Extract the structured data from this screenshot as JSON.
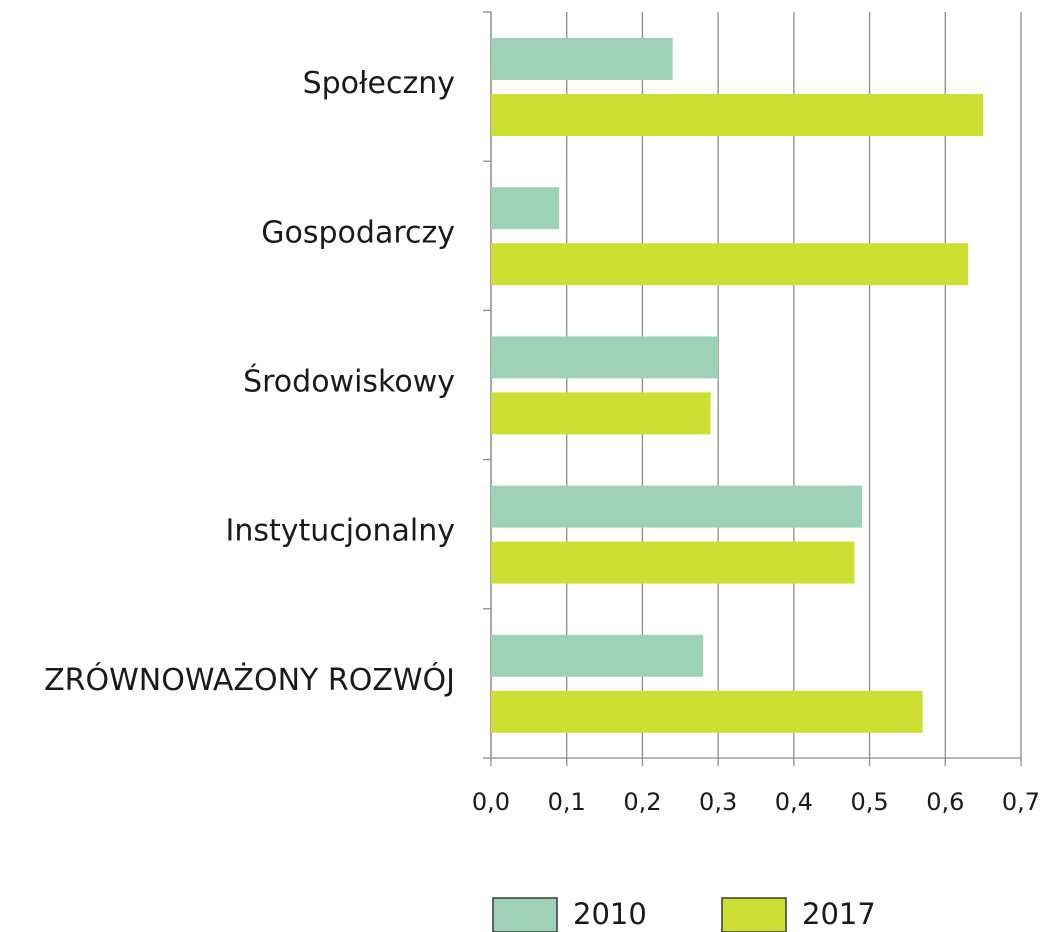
{
  "chart_data": {
    "type": "barh",
    "categories": [
      "Społeczny",
      "Gospodarczy",
      "Środowiskowy",
      "Instytucjonalny",
      "ZRÓWNOWAŻONY ROZWÓJ"
    ],
    "series": [
      {
        "name": "2010",
        "color": "#9ed2b6",
        "values": [
          0.24,
          0.09,
          0.3,
          0.49,
          0.28
        ]
      },
      {
        "name": "2017",
        "color": "#cedf33",
        "values": [
          0.65,
          0.63,
          0.29,
          0.48,
          0.57
        ]
      }
    ],
    "xlim": [
      0,
      0.7
    ],
    "xticks": [
      {
        "value": 0,
        "label": "0,0"
      },
      {
        "value": 0.1,
        "label": "0,1"
      },
      {
        "value": 0.2,
        "label": "0,2"
      },
      {
        "value": 0.3,
        "label": "0,3"
      },
      {
        "value": 0.4,
        "label": "0,4"
      },
      {
        "value": 0.5,
        "label": "0,5"
      },
      {
        "value": 0.6,
        "label": "0,6"
      },
      {
        "value": 0.7,
        "label": "0,7"
      }
    ],
    "grid": true,
    "legend": "bottom"
  }
}
